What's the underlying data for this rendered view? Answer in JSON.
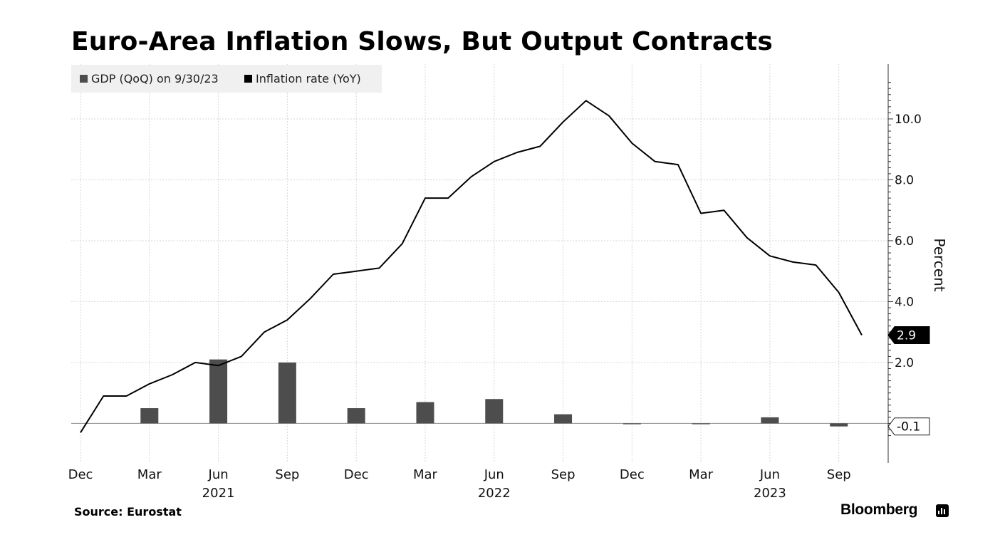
{
  "chart_data": {
    "type": "bar+line",
    "title": "Euro-Area Inflation Slows, But Output Contracts",
    "source": "Source: Eurostat",
    "brand": "Bloomberg",
    "ylabel": "Percent",
    "ylim": [
      -1.3,
      11.8
    ],
    "yticks": [
      2.0,
      4.0,
      6.0,
      8.0,
      10.0
    ],
    "ytick_labels": [
      "2.0",
      "4.0",
      "6.0",
      "8.0",
      "10.0"
    ],
    "x_start": "2020-12",
    "x_end": "2023-10",
    "x_ticks": [
      {
        "date": "2020-12",
        "label": "Dec",
        "year": ""
      },
      {
        "date": "2021-03",
        "label": "Mar",
        "year": ""
      },
      {
        "date": "2021-06",
        "label": "Jun",
        "year": "2021"
      },
      {
        "date": "2021-09",
        "label": "Sep",
        "year": ""
      },
      {
        "date": "2021-12",
        "label": "Dec",
        "year": ""
      },
      {
        "date": "2022-03",
        "label": "Mar",
        "year": ""
      },
      {
        "date": "2022-06",
        "label": "Jun",
        "year": "2022"
      },
      {
        "date": "2022-09",
        "label": "Sep",
        "year": ""
      },
      {
        "date": "2022-12",
        "label": "Dec",
        "year": ""
      },
      {
        "date": "2023-03",
        "label": "Mar",
        "year": ""
      },
      {
        "date": "2023-06",
        "label": "Jun",
        "year": "2023"
      },
      {
        "date": "2023-09",
        "label": "Sep",
        "year": ""
      }
    ],
    "legend_position": "top-left",
    "grid": true,
    "series": [
      {
        "name": "GDP (QoQ) on 9/30/23",
        "type": "bar",
        "color": "#4d4d4d",
        "x": [
          "2021-03",
          "2021-06",
          "2021-09",
          "2021-12",
          "2022-03",
          "2022-06",
          "2022-09",
          "2022-12",
          "2023-03",
          "2023-06",
          "2023-09"
        ],
        "values": [
          0.5,
          2.1,
          2.0,
          0.5,
          0.7,
          0.8,
          0.3,
          0.0,
          0.0,
          0.2,
          -0.1
        ],
        "last_value_label": "-0.1"
      },
      {
        "name": "Inflation rate (YoY)",
        "type": "line",
        "color": "#000000",
        "x": [
          "2020-12",
          "2021-01",
          "2021-02",
          "2021-03",
          "2021-04",
          "2021-05",
          "2021-06",
          "2021-07",
          "2021-08",
          "2021-09",
          "2021-10",
          "2021-11",
          "2021-12",
          "2022-01",
          "2022-02",
          "2022-03",
          "2022-04",
          "2022-05",
          "2022-06",
          "2022-07",
          "2022-08",
          "2022-09",
          "2022-10",
          "2022-11",
          "2022-12",
          "2023-01",
          "2023-02",
          "2023-03",
          "2023-04",
          "2023-05",
          "2023-06",
          "2023-07",
          "2023-08",
          "2023-09",
          "2023-10"
        ],
        "values": [
          -0.3,
          0.9,
          0.9,
          1.3,
          1.6,
          2.0,
          1.9,
          2.2,
          3.0,
          3.4,
          4.1,
          4.9,
          5.0,
          5.1,
          5.9,
          7.4,
          7.4,
          8.1,
          8.6,
          8.9,
          9.1,
          9.9,
          10.6,
          10.1,
          9.2,
          8.6,
          8.5,
          6.9,
          7.0,
          6.1,
          5.5,
          5.3,
          5.2,
          4.3,
          2.9
        ],
        "last_value_label": "2.9"
      }
    ]
  }
}
